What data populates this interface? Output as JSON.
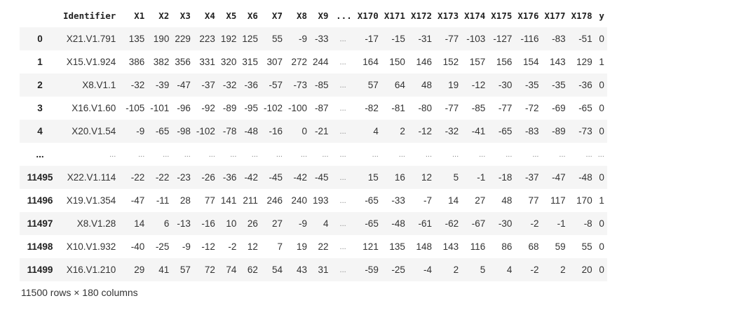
{
  "table": {
    "columns": [
      "Identifier",
      "X1",
      "X2",
      "X3",
      "X4",
      "X5",
      "X6",
      "X7",
      "X8",
      "X9",
      "...",
      "X170",
      "X171",
      "X172",
      "X173",
      "X174",
      "X175",
      "X176",
      "X177",
      "X178",
      "y"
    ],
    "rows": [
      {
        "index": "0",
        "cells": [
          "X21.V1.791",
          "135",
          "190",
          "229",
          "223",
          "192",
          "125",
          "55",
          "-9",
          "-33",
          "...",
          "-17",
          "-15",
          "-31",
          "-77",
          "-103",
          "-127",
          "-116",
          "-83",
          "-51",
          "0"
        ]
      },
      {
        "index": "1",
        "cells": [
          "X15.V1.924",
          "386",
          "382",
          "356",
          "331",
          "320",
          "315",
          "307",
          "272",
          "244",
          "...",
          "164",
          "150",
          "146",
          "152",
          "157",
          "156",
          "154",
          "143",
          "129",
          "1"
        ]
      },
      {
        "index": "2",
        "cells": [
          "X8.V1.1",
          "-32",
          "-39",
          "-47",
          "-37",
          "-32",
          "-36",
          "-57",
          "-73",
          "-85",
          "...",
          "57",
          "64",
          "48",
          "19",
          "-12",
          "-30",
          "-35",
          "-35",
          "-36",
          "0"
        ]
      },
      {
        "index": "3",
        "cells": [
          "X16.V1.60",
          "-105",
          "-101",
          "-96",
          "-92",
          "-89",
          "-95",
          "-102",
          "-100",
          "-87",
          "...",
          "-82",
          "-81",
          "-80",
          "-77",
          "-85",
          "-77",
          "-72",
          "-69",
          "-65",
          "0"
        ]
      },
      {
        "index": "4",
        "cells": [
          "X20.V1.54",
          "-9",
          "-65",
          "-98",
          "-102",
          "-78",
          "-48",
          "-16",
          "0",
          "-21",
          "...",
          "4",
          "2",
          "-12",
          "-32",
          "-41",
          "-65",
          "-83",
          "-89",
          "-73",
          "0"
        ]
      },
      {
        "index": "...",
        "cells": [
          "...",
          "...",
          "...",
          "...",
          "...",
          "...",
          "...",
          "...",
          "...",
          "...",
          "...",
          "...",
          "...",
          "...",
          "...",
          "...",
          "...",
          "...",
          "...",
          "...",
          "..."
        ]
      },
      {
        "index": "11495",
        "cells": [
          "X22.V1.114",
          "-22",
          "-22",
          "-23",
          "-26",
          "-36",
          "-42",
          "-45",
          "-42",
          "-45",
          "...",
          "15",
          "16",
          "12",
          "5",
          "-1",
          "-18",
          "-37",
          "-47",
          "-48",
          "0"
        ]
      },
      {
        "index": "11496",
        "cells": [
          "X19.V1.354",
          "-47",
          "-11",
          "28",
          "77",
          "141",
          "211",
          "246",
          "240",
          "193",
          "...",
          "-65",
          "-33",
          "-7",
          "14",
          "27",
          "48",
          "77",
          "117",
          "170",
          "1"
        ]
      },
      {
        "index": "11497",
        "cells": [
          "X8.V1.28",
          "14",
          "6",
          "-13",
          "-16",
          "10",
          "26",
          "27",
          "-9",
          "4",
          "...",
          "-65",
          "-48",
          "-61",
          "-62",
          "-67",
          "-30",
          "-2",
          "-1",
          "-8",
          "0"
        ]
      },
      {
        "index": "11498",
        "cells": [
          "X10.V1.932",
          "-40",
          "-25",
          "-9",
          "-12",
          "-2",
          "12",
          "7",
          "19",
          "22",
          "...",
          "121",
          "135",
          "148",
          "143",
          "116",
          "86",
          "68",
          "59",
          "55",
          "0"
        ]
      },
      {
        "index": "11499",
        "cells": [
          "X16.V1.210",
          "29",
          "41",
          "57",
          "72",
          "74",
          "62",
          "54",
          "43",
          "31",
          "...",
          "-59",
          "-25",
          "-4",
          "2",
          "5",
          "4",
          "-2",
          "2",
          "20",
          "0"
        ]
      }
    ]
  },
  "footer": "11500 rows × 180 columns"
}
